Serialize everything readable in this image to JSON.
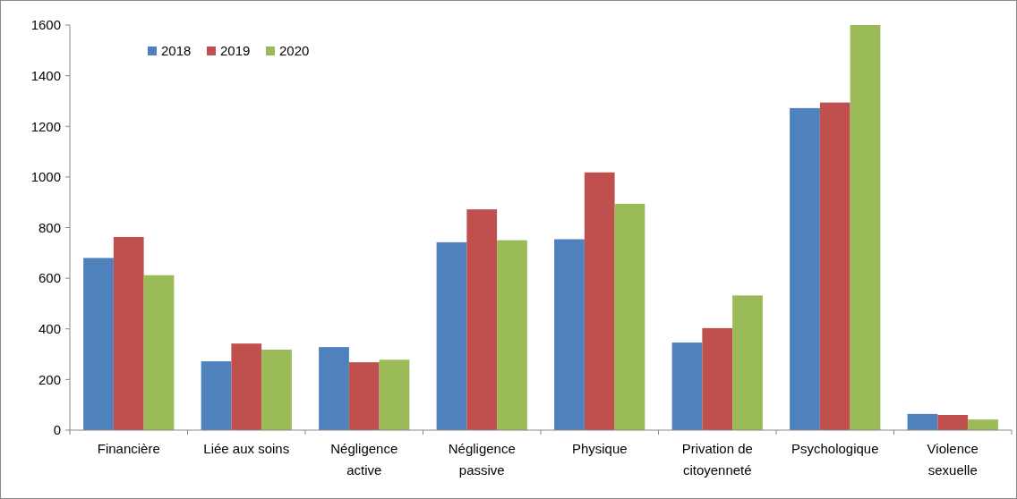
{
  "chart_data": {
    "type": "bar",
    "categories": [
      "Financière",
      "Liée aux soins",
      "Négligence active",
      "Négligence passive",
      "Physique",
      "Privation de citoyenneté",
      "Psychologique",
      "Violence sexuelle"
    ],
    "series": [
      {
        "name": "2018",
        "color": "#4f81bd",
        "values": [
          680,
          272,
          328,
          742,
          754,
          346,
          1272,
          64
        ]
      },
      {
        "name": "2019",
        "color": "#c0504d",
        "values": [
          763,
          342,
          268,
          872,
          1018,
          403,
          1294,
          60
        ]
      },
      {
        "name": "2020",
        "color": "#9bbb59",
        "values": [
          612,
          318,
          278,
          750,
          894,
          532,
          1600,
          42
        ]
      }
    ],
    "ylim": [
      0,
      1600
    ],
    "yticks": [
      0,
      200,
      400,
      600,
      800,
      1000,
      1200,
      1400,
      1600
    ],
    "grid": false,
    "legend": "top left"
  }
}
